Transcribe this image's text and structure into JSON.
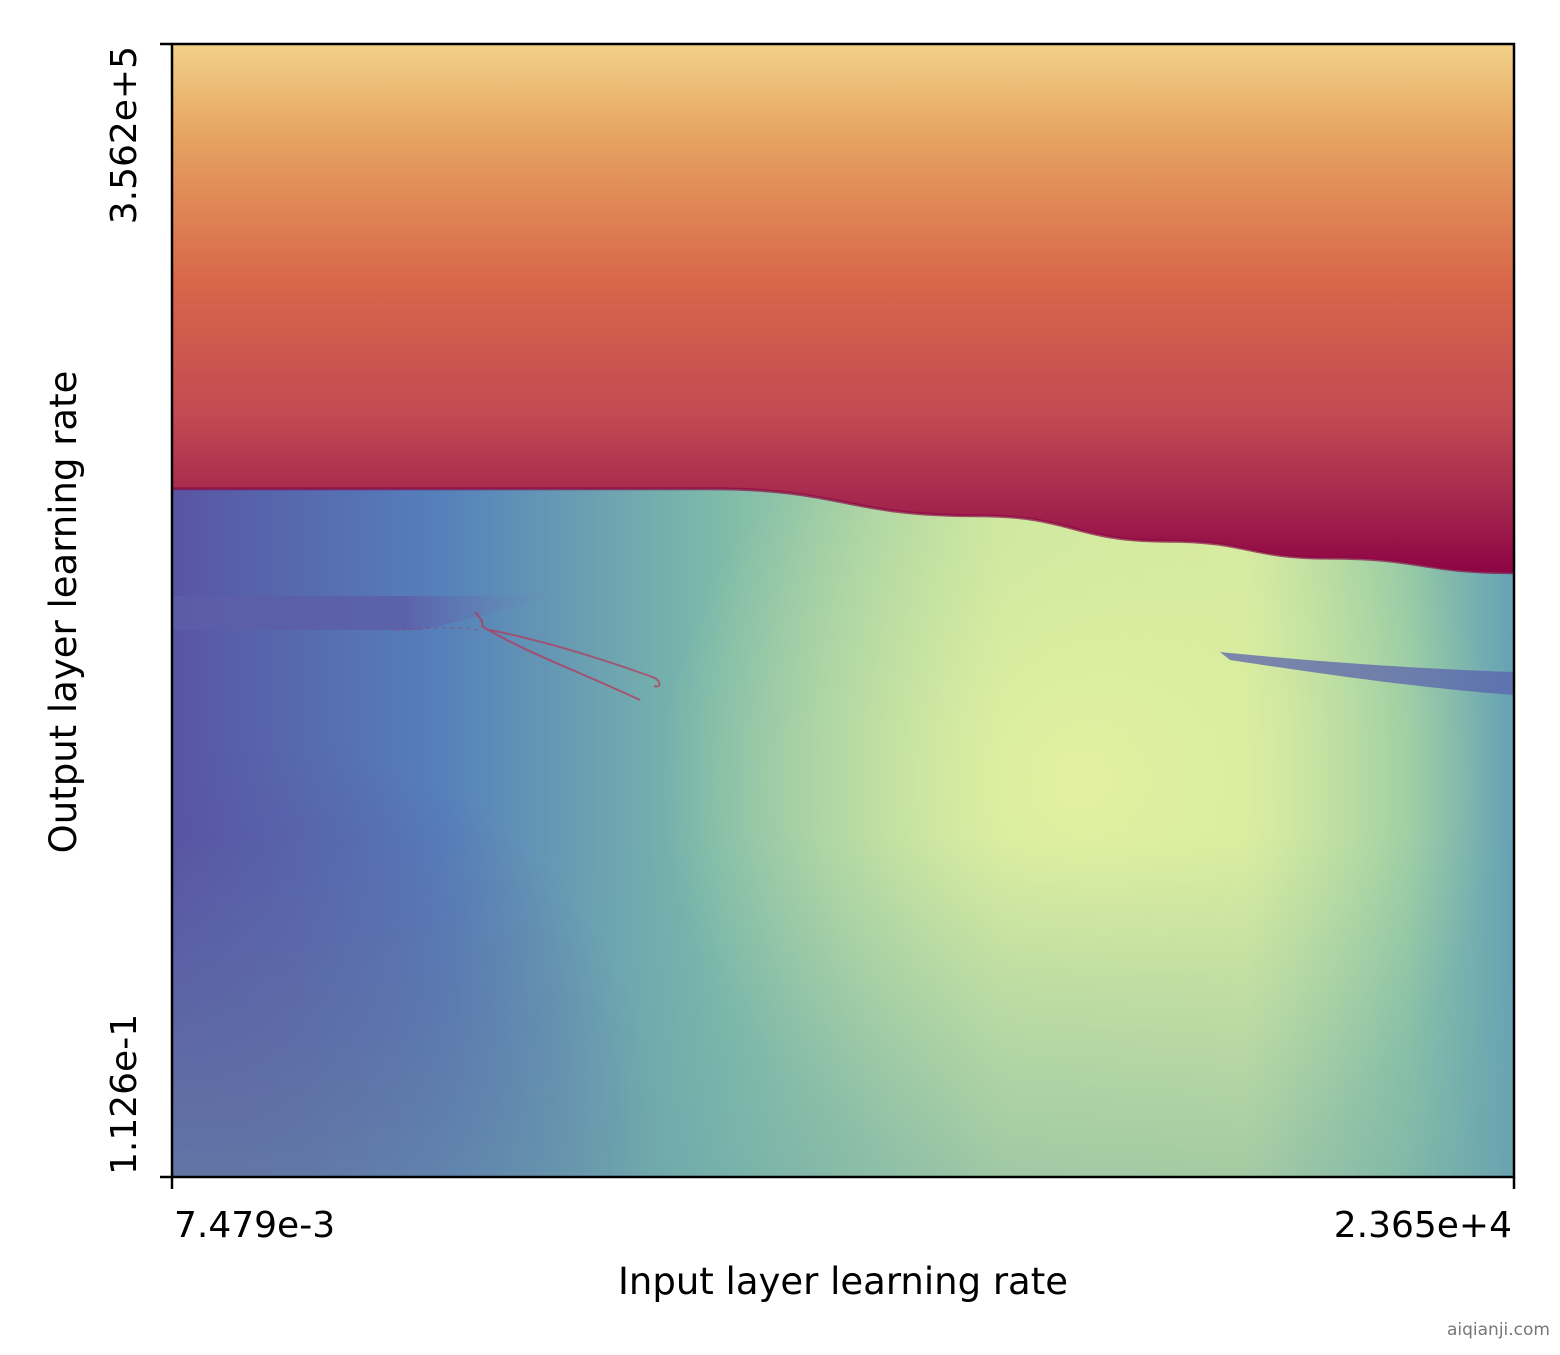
{
  "chart_data": {
    "type": "heatmap",
    "title": "",
    "xlabel": "Input layer learning rate",
    "ylabel": "Output layer learning rate",
    "x_scale": "log",
    "y_scale": "log",
    "xlim": [
      0.007479,
      23650
    ],
    "ylim": [
      0.1126,
      356200
    ],
    "x_tick_labels": [
      "7.479e-3",
      "2.365e+4"
    ],
    "y_tick_labels": [
      "1.126e-1",
      "3.562e+5"
    ],
    "colormap": "Spectral",
    "colorbar": false,
    "grid": false,
    "divergence_boundary": {
      "description_points_x": [
        0.007479,
        0.1,
        3.0,
        60,
        500,
        3000,
        23650
      ],
      "description_points_y": [
        1000,
        1000,
        1000,
        700,
        500,
        400,
        330
      ]
    }
  },
  "watermark": "aiqianji.com"
}
